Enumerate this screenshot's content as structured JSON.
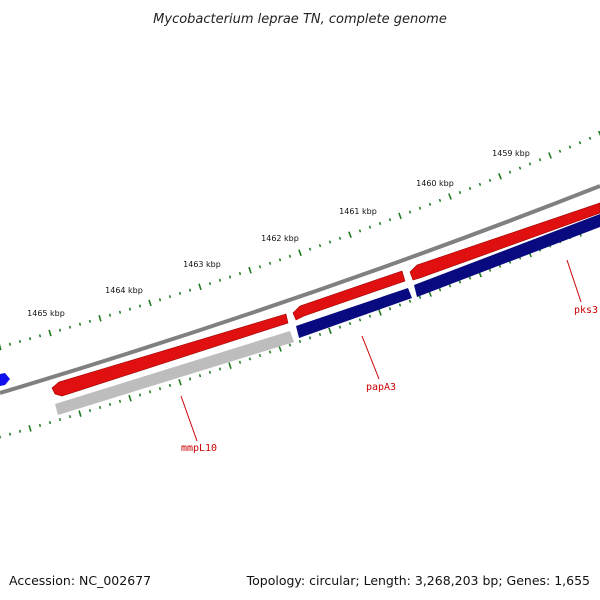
{
  "title": "Mycobacterium leprae TN, complete genome",
  "footer": {
    "accession": "Accession: NC_002677",
    "summary": "Topology: circular; Length: 3,268,203 bp; Genes: 1,655"
  },
  "ruler": {
    "tick_color": "#1f7a1f",
    "labels": [
      "1465 kbp",
      "1464 kbp",
      "1463 kbp",
      "1462 kbp",
      "1461 kbp",
      "1460 kbp",
      "1459 kbp"
    ]
  },
  "genes": [
    {
      "name": "mmpL10",
      "label_color": "#cc0000"
    },
    {
      "name": "papA3",
      "label_color": "#cc0000"
    },
    {
      "name": "pks3",
      "label_color": "#cc0000"
    }
  ],
  "colors": {
    "backbone": "#808080",
    "forward_feature": "#e01010",
    "reverse_cds": "#0a0a80",
    "reverse_other": "#bdbdbd",
    "other_feature": "#1010ee"
  }
}
